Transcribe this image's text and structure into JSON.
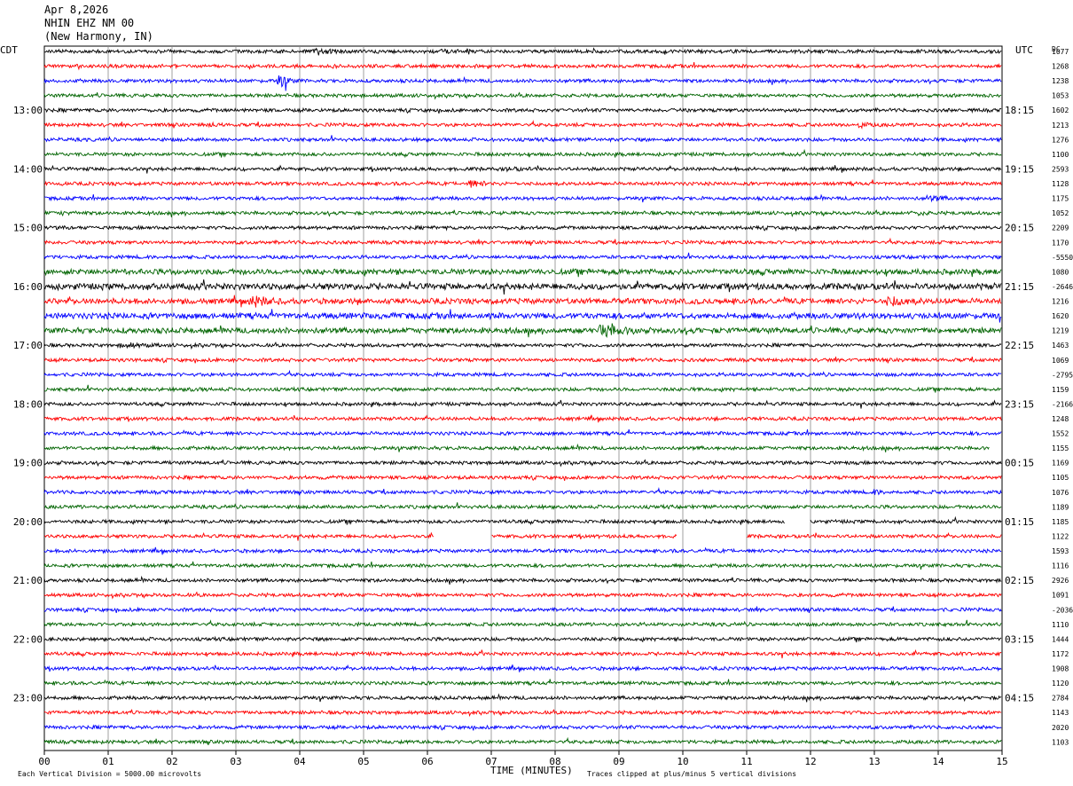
{
  "header": {
    "date": "Apr 8,2026",
    "station": "NHIN EHZ NM 00",
    "location": "(New Harmony, IN)"
  },
  "chart_data": {
    "type": "line",
    "subtype": "helicorder",
    "left_timezone_label": "CDT",
    "right_timezone_label": "UTC",
    "right_column_header": "DC",
    "xlabel": "TIME (MINUTES)",
    "xlim": [
      0,
      15
    ],
    "x_ticks": [
      "00",
      "01",
      "02",
      "03",
      "04",
      "05",
      "06",
      "07",
      "08",
      "09",
      "10",
      "11",
      "12",
      "13",
      "14",
      "15"
    ],
    "left_hour_labels": [
      "13:00",
      "14:00",
      "15:00",
      "16:00",
      "17:00",
      "18:00",
      "19:00",
      "20:00",
      "21:00",
      "22:00",
      "23:00"
    ],
    "right_hour_labels": [
      "18:15",
      "19:15",
      "20:15",
      "21:15",
      "22:15",
      "23:15",
      "00:15",
      "01:15",
      "02:15",
      "03:15",
      "04:15"
    ],
    "trace_colors": [
      "#000000",
      "#ff0000",
      "#0000ff",
      "#006400"
    ],
    "trace_dc_offsets": [
      "1077",
      "1268",
      "1238",
      "1053",
      "1602",
      "1213",
      "1276",
      "1100",
      "2593",
      "1128",
      "1175",
      "1052",
      "2209",
      "1170",
      "-5550",
      "1080",
      "-2646",
      "1216",
      "1620",
      "1219",
      "1463",
      "1069",
      "-2795",
      "1159",
      "-2166",
      "1248",
      "1552",
      "1155",
      "1169",
      "1105",
      "1076",
      "1189",
      "1185",
      "1122",
      "1593",
      "1116",
      "2926",
      "1091",
      "-2036",
      "1110",
      "1444",
      "1172",
      "1908",
      "1120",
      "2784",
      "1143",
      "2020",
      "1103"
    ],
    "gaps_minutes": [
      {
        "row": 32,
        "start": 11.6,
        "end": 12.0
      },
      {
        "row": 33,
        "start": 6.1,
        "end": 7.0
      },
      {
        "row": 33,
        "start": 9.9,
        "end": 11.0
      }
    ],
    "footer_left": "Each Vertical Division = 5000.00 microvolts",
    "footer_right": "Traces clipped at plus/minus 5 vertical divisions"
  }
}
